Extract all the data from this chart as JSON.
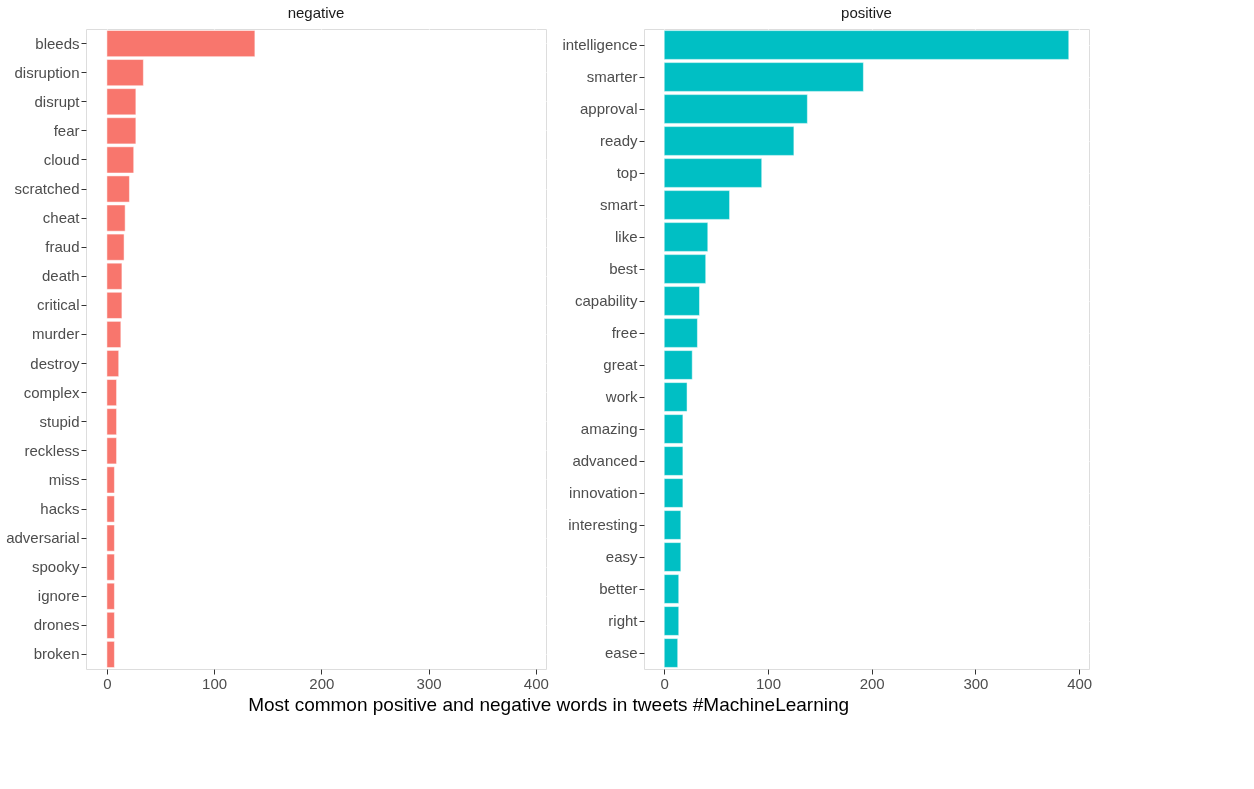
{
  "chart_data": [
    {
      "type": "bar",
      "orientation": "horizontal",
      "title": "negative",
      "xlabel": "Most common positive and negative words in tweets #MachineLearning",
      "categories": [
        "bleeds",
        "disruption",
        "disrupt",
        "fear",
        "cloud",
        "scratched",
        "cheat",
        "fraud",
        "death",
        "critical",
        "murder",
        "destroy",
        "complex",
        "stupid",
        "reckless",
        "miss",
        "hacks",
        "adversarial",
        "spooky",
        "ignore",
        "drones",
        "broken"
      ],
      "values": [
        138,
        34,
        27,
        27,
        25,
        21,
        17,
        16,
        14,
        14,
        13,
        11,
        9,
        9,
        9,
        7,
        7,
        7,
        7,
        7,
        7,
        7
      ],
      "color": "#f8766d",
      "xlim": [
        -19.5,
        409.5
      ],
      "xticks": [
        0,
        100,
        200,
        300,
        400
      ],
      "grid": true
    },
    {
      "type": "bar",
      "orientation": "horizontal",
      "title": "positive",
      "categories": [
        "intelligence",
        "smarter",
        "approval",
        "ready",
        "top",
        "smart",
        "like",
        "best",
        "capability",
        "free",
        "great",
        "work",
        "amazing",
        "advanced",
        "innovation",
        "interesting",
        "easy",
        "better",
        "right",
        "ease"
      ],
      "values": [
        390,
        192,
        138,
        125,
        94,
        63,
        42,
        40,
        34,
        32,
        27,
        22,
        18,
        18,
        18,
        16,
        16,
        14,
        14,
        13
      ],
      "color": "#00bfc4",
      "xlim": [
        -19.5,
        409.5
      ],
      "xticks": [
        0,
        100,
        200,
        300,
        400
      ],
      "grid": true
    }
  ]
}
